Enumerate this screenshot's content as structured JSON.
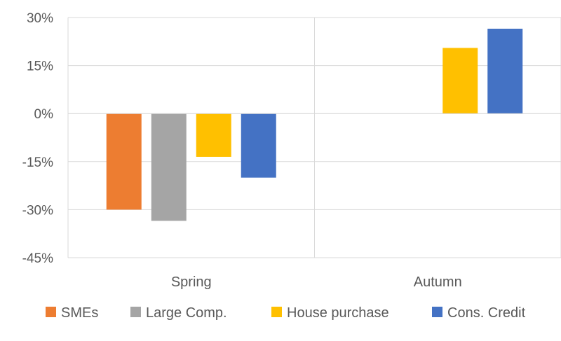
{
  "chart_data": {
    "type": "bar",
    "categories": [
      "Spring",
      "Autumn"
    ],
    "series": [
      {
        "name": "SMEs",
        "color": "#ED7D31",
        "values": [
          -30,
          null
        ]
      },
      {
        "name": "Large Comp.",
        "color": "#A5A5A5",
        "values": [
          -33.5,
          null
        ]
      },
      {
        "name": "House purchase",
        "color": "#FFC000",
        "values": [
          -13.5,
          20.5
        ]
      },
      {
        "name": "Cons. Credit",
        "color": "#4472C4",
        "values": [
          -20,
          26.5
        ]
      }
    ],
    "y_ticks": [
      "30%",
      "15%",
      "0%",
      "-15%",
      "-30%",
      "-45%"
    ],
    "y_tick_values": [
      30,
      15,
      0,
      -15,
      -30,
      -45
    ],
    "ylim": [
      -45,
      30
    ],
    "title": "",
    "xlabel": "",
    "ylabel": "",
    "grid": "horizontal and vertical category separators",
    "legend_position": "bottom"
  }
}
